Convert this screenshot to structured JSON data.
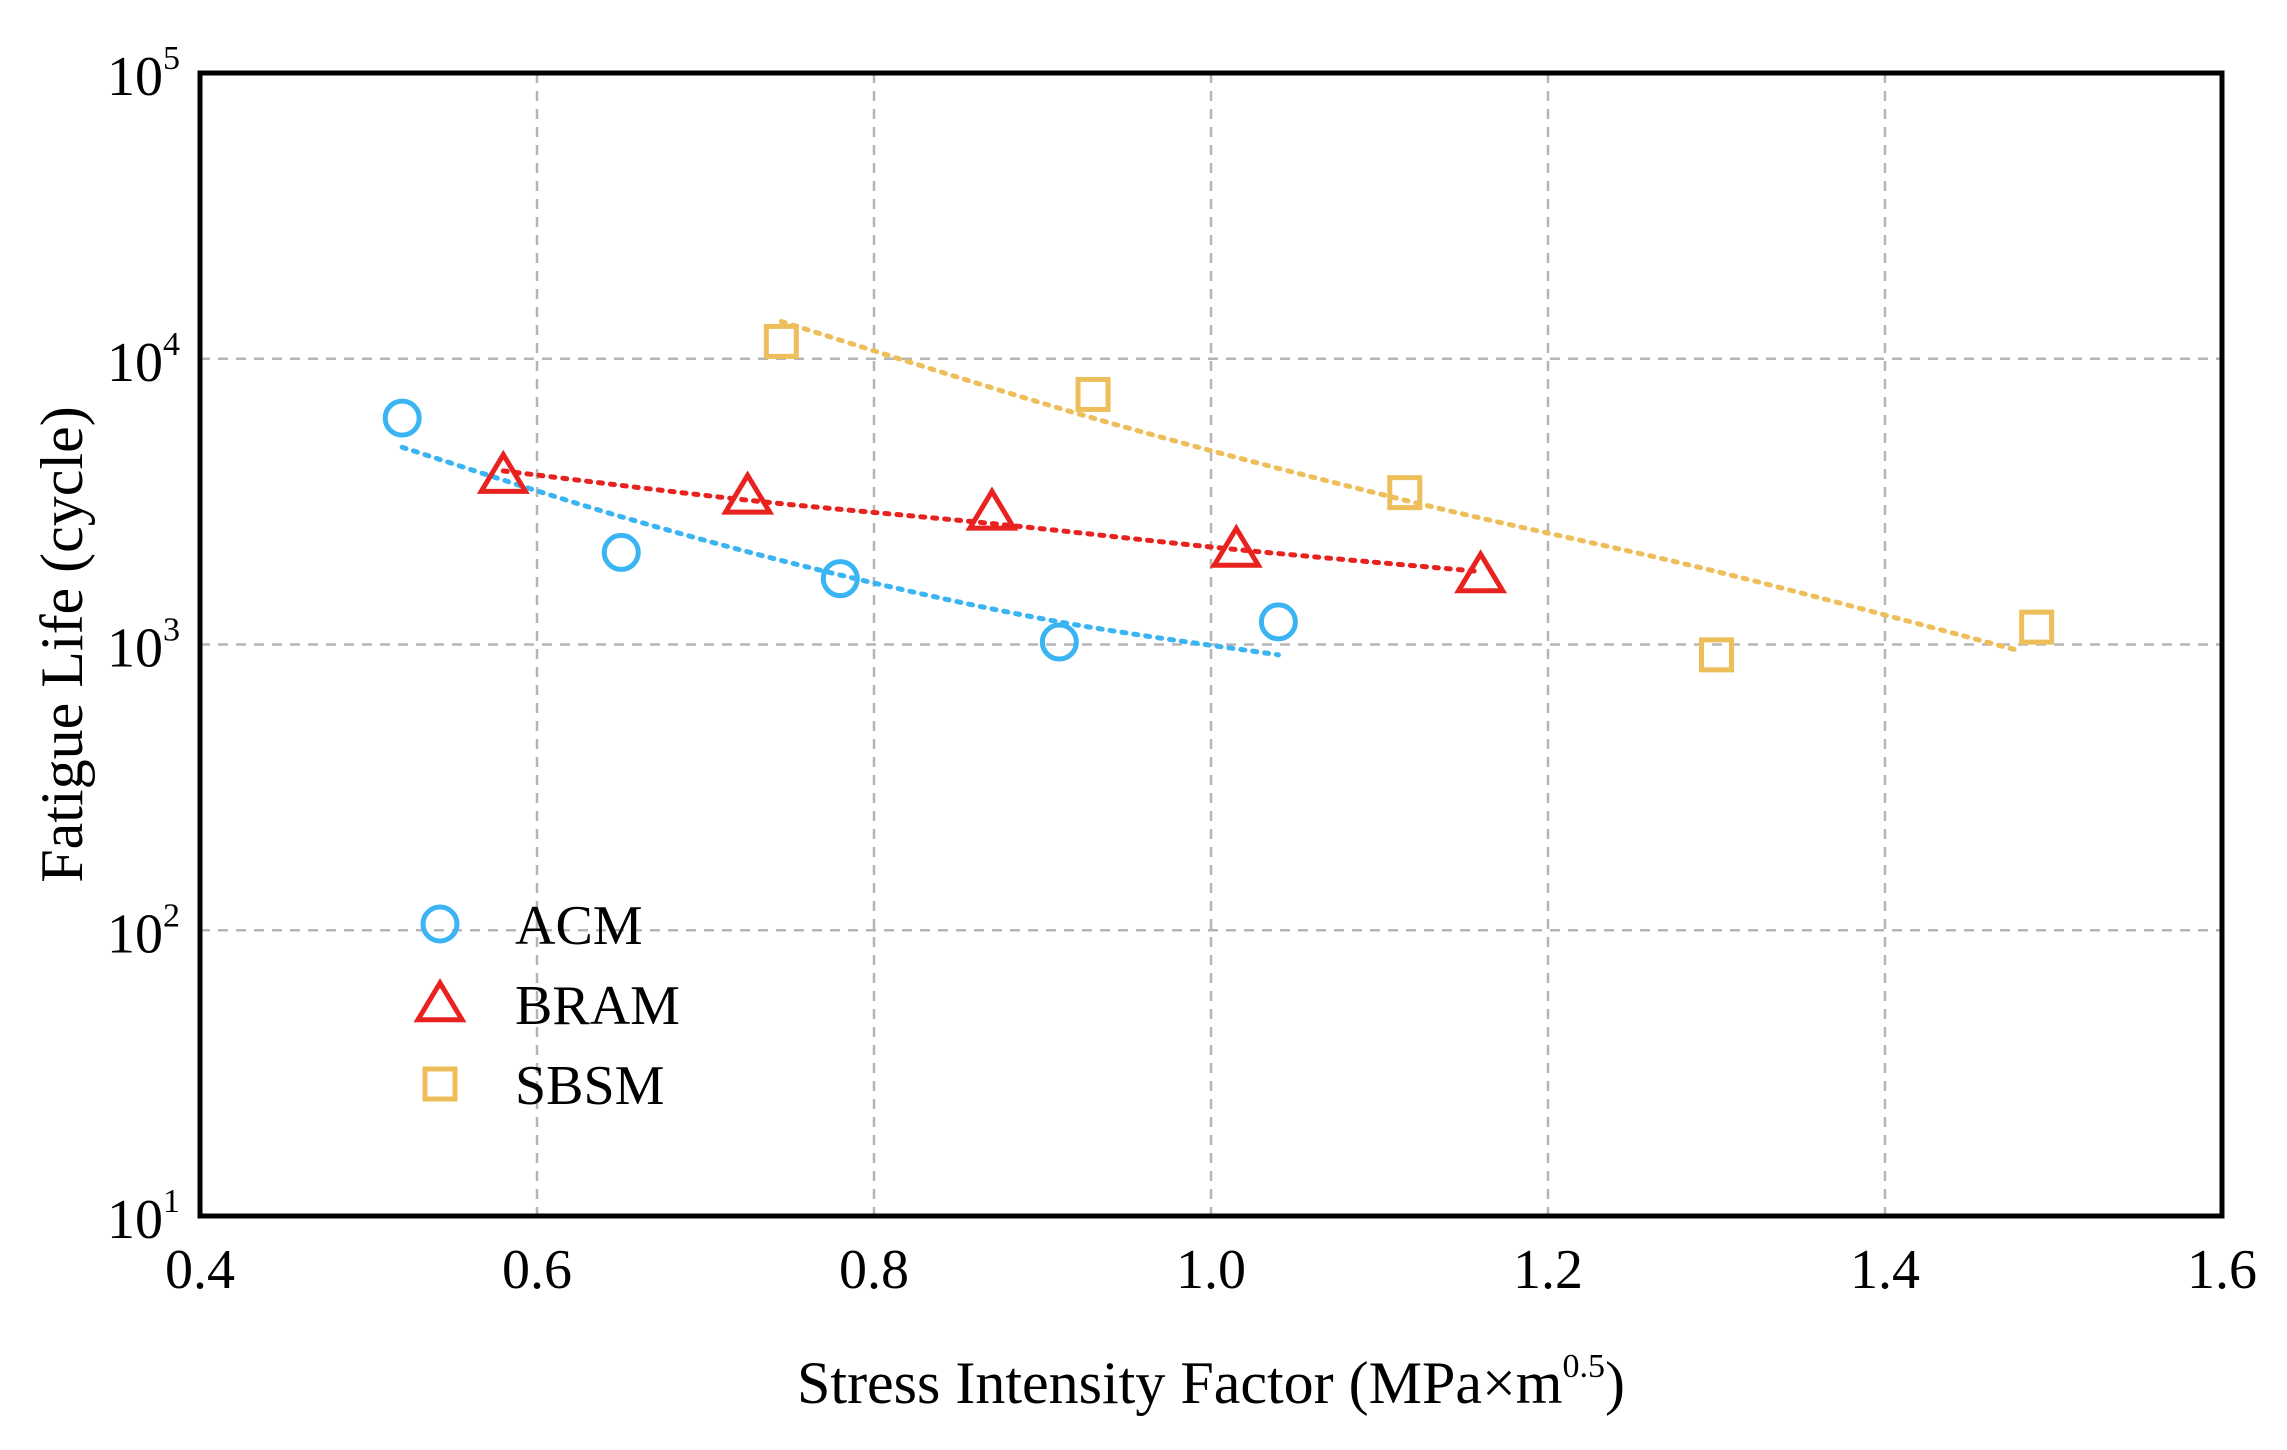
{
  "chart_data": {
    "type": "scatter",
    "xlabel": "Stress Intensity Factor (MPa×m",
    "xlabel_sup": "0.5",
    "xlabel_close": ")",
    "ylabel": "Fatigue Life (cycle)",
    "xlim": [
      0.4,
      1.6
    ],
    "ylim": [
      10,
      100000
    ],
    "yscale": "log",
    "grid": true,
    "legend_position": "lower-left",
    "xticks": [
      {
        "value": 0.4,
        "label": "0.4"
      },
      {
        "value": 0.6,
        "label": "0.6"
      },
      {
        "value": 0.8,
        "label": "0.8"
      },
      {
        "value": 1.0,
        "label": "1.0"
      },
      {
        "value": 1.2,
        "label": "1.2"
      },
      {
        "value": 1.4,
        "label": "1.4"
      },
      {
        "value": 1.6,
        "label": "1.6"
      }
    ],
    "yticks": [
      {
        "value": 10,
        "base": "10",
        "exp": "1"
      },
      {
        "value": 100,
        "base": "10",
        "exp": "2"
      },
      {
        "value": 1000,
        "base": "10",
        "exp": "3"
      },
      {
        "value": 10000,
        "base": "10",
        "exp": "4"
      },
      {
        "value": 100000,
        "base": "10",
        "exp": "5"
      }
    ],
    "series": [
      {
        "name": "ACM",
        "marker": "circle",
        "color": "#3ab4f2",
        "points": [
          {
            "x": 0.52,
            "y": 6200
          },
          {
            "x": 0.65,
            "y": 2100
          },
          {
            "x": 0.78,
            "y": 1700
          },
          {
            "x": 0.91,
            "y": 1020
          },
          {
            "x": 1.04,
            "y": 1200
          }
        ],
        "fit": [
          {
            "x": 0.52,
            "y": 4900
          },
          {
            "x": 0.65,
            "y": 2800
          },
          {
            "x": 0.78,
            "y": 1750
          },
          {
            "x": 0.91,
            "y": 1200
          },
          {
            "x": 1.04,
            "y": 920
          }
        ]
      },
      {
        "name": "BRAM",
        "marker": "triangle",
        "color": "#e8231f",
        "points": [
          {
            "x": 0.58,
            "y": 3900
          },
          {
            "x": 0.725,
            "y": 3300
          },
          {
            "x": 0.87,
            "y": 2900
          },
          {
            "x": 1.015,
            "y": 2150
          },
          {
            "x": 1.16,
            "y": 1750
          }
        ],
        "fit": [
          {
            "x": 0.58,
            "y": 4050
          },
          {
            "x": 0.725,
            "y": 3200
          },
          {
            "x": 0.87,
            "y": 2650
          },
          {
            "x": 1.015,
            "y": 2150
          },
          {
            "x": 1.16,
            "y": 1800
          }
        ]
      },
      {
        "name": "SBSM",
        "marker": "square",
        "color": "#eebe5b",
        "points": [
          {
            "x": 0.745,
            "y": 11500
          },
          {
            "x": 0.93,
            "y": 7500
          },
          {
            "x": 1.115,
            "y": 3400
          },
          {
            "x": 1.3,
            "y": 920
          },
          {
            "x": 1.49,
            "y": 1150
          }
        ],
        "fit": [
          {
            "x": 0.745,
            "y": 13500
          },
          {
            "x": 0.93,
            "y": 6200
          },
          {
            "x": 1.115,
            "y": 3200
          },
          {
            "x": 1.3,
            "y": 1800
          },
          {
            "x": 1.48,
            "y": 950
          }
        ]
      }
    ]
  }
}
